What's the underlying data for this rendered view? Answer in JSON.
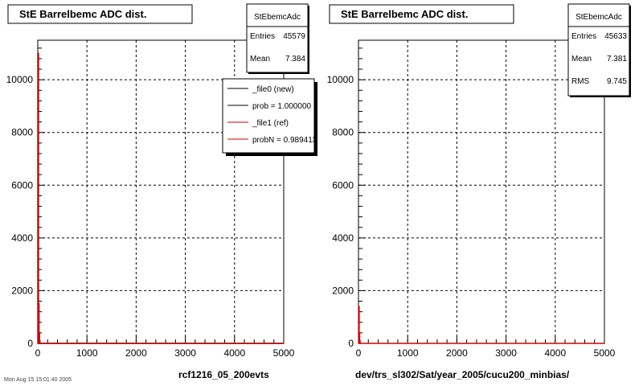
{
  "chart_data": [
    {
      "type": "histogram",
      "title": "StE Barrelbemc ADC dist.",
      "xlabel": "rcf1216_05_200evts",
      "ylabel": "",
      "xlim": [
        0,
        5000
      ],
      "ylim": [
        0,
        11500
      ],
      "grid": true,
      "x_ticks": [
        "0",
        "1000",
        "2000",
        "3000",
        "4000",
        "5000"
      ],
      "y_ticks": [
        "0",
        "2000",
        "4000",
        "6000",
        "8000",
        "10000"
      ],
      "series": [
        {
          "name": "_file0 (new)",
          "color": "#000000",
          "bins": [
            {
              "x": 0,
              "y": 11000
            },
            {
              "x": 10,
              "y": 1500
            },
            {
              "x": 20,
              "y": 400
            },
            {
              "x": 30,
              "y": 100
            }
          ]
        },
        {
          "name": "_file1 (ref)",
          "color": "#d00000",
          "bins": [
            {
              "x": 0,
              "y": 11000
            },
            {
              "x": 10,
              "y": 1500
            },
            {
              "x": 20,
              "y": 400
            },
            {
              "x": 30,
              "y": 100
            }
          ]
        }
      ],
      "stats": {
        "name": "StEbemcAdc",
        "rows": [
          {
            "label": "Entries",
            "value": "45579"
          },
          {
            "label": "Mean",
            "value": "7.384"
          }
        ]
      },
      "legend": {
        "placement": "top-right",
        "items": [
          {
            "label": "_file0 (new)",
            "color": "#000000"
          },
          {
            "label": "prob = 1.000000",
            "color": "#000000"
          },
          {
            "label": "_file1 (ref)",
            "color": "#d00000"
          },
          {
            "label": "probN = 0.989413",
            "color": "#d00000"
          }
        ]
      }
    },
    {
      "type": "histogram",
      "title": "StE Barrelbemc ADC dist.",
      "xlabel": "dev/trs_sl302/Sat/year_2005/cucu200_minbias/",
      "ylabel": "",
      "xlim": [
        0,
        5000
      ],
      "ylim": [
        0,
        11500
      ],
      "grid": true,
      "x_ticks": [
        "0",
        "1000",
        "2000",
        "3000",
        "4000",
        "5000"
      ],
      "y_ticks": [
        "0",
        "2000",
        "4000",
        "6000",
        "8000",
        "10000"
      ],
      "series": [
        {
          "name": "",
          "color": "#d00000",
          "bins": [
            {
              "x": 0,
              "y": 1400
            },
            {
              "x": 10,
              "y": 400
            },
            {
              "x": 20,
              "y": 100
            }
          ]
        }
      ],
      "stats": {
        "name": "StEbemcAdc",
        "rows": [
          {
            "label": "Entries",
            "value": "45633"
          },
          {
            "label": "Mean",
            "value": "7.381"
          },
          {
            "label": "RMS",
            "value": "9.745"
          }
        ]
      }
    }
  ],
  "footer": "Mon Aug 15 15:01:40 2005"
}
